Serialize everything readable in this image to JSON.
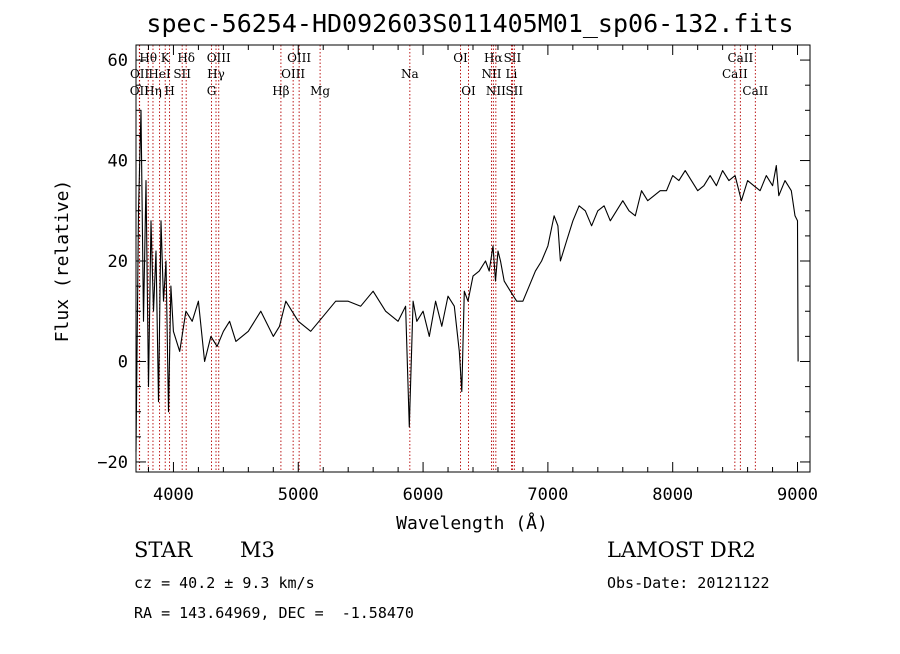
{
  "chart_data": {
    "type": "line",
    "title": "spec-56254-HD092603S011405M01_sp06-132.fits",
    "xlabel": "Wavelength (Å)",
    "ylabel": "Flux (relative)",
    "xlim": [
      3700,
      9100
    ],
    "ylim": [
      -22,
      63
    ],
    "x_ticks": [
      4000,
      5000,
      6000,
      7000,
      8000,
      9000
    ],
    "y_ticks": [
      -20,
      0,
      20,
      40,
      60
    ],
    "grid": false,
    "series": [
      {
        "x": [
          3700,
          3720,
          3740,
          3760,
          3780,
          3800,
          3820,
          3840,
          3860,
          3880,
          3900,
          3920,
          3940,
          3960,
          3980,
          4000,
          4050,
          4100,
          4150,
          4200,
          4250,
          4300,
          4350,
          4400,
          4450,
          4500,
          4600,
          4700,
          4800,
          4850,
          4900,
          5000,
          5100,
          5200,
          5300,
          5400,
          5500,
          5600,
          5700,
          5800,
          5860,
          5890,
          5920,
          5950,
          6000,
          6050,
          6100,
          6150,
          6200,
          6250,
          6290,
          6310,
          6330,
          6360,
          6400,
          6450,
          6500,
          6530,
          6560,
          6580,
          6600,
          6620,
          6650,
          6700,
          6750,
          6800,
          6850,
          6900,
          6950,
          7000,
          7050,
          7080,
          7100,
          7150,
          7200,
          7250,
          7300,
          7350,
          7400,
          7450,
          7500,
          7550,
          7600,
          7650,
          7700,
          7750,
          7800,
          7850,
          7900,
          7950,
          8000,
          8050,
          8100,
          8150,
          8200,
          8250,
          8300,
          8350,
          8400,
          8450,
          8500,
          8550,
          8600,
          8650,
          8700,
          8750,
          8800,
          8830,
          8850,
          8900,
          8950,
          8980,
          9000,
          9005
        ],
        "y": [
          -18,
          30,
          50,
          8,
          36,
          -5,
          28,
          10,
          22,
          -8,
          28,
          12,
          20,
          -10,
          15,
          6,
          2,
          10,
          8,
          12,
          0,
          5,
          3,
          6,
          8,
          4,
          6,
          10,
          5,
          7,
          12,
          8,
          6,
          9,
          12,
          12,
          11,
          14,
          10,
          8,
          11,
          -13,
          12,
          8,
          10,
          5,
          12,
          7,
          13,
          11,
          2,
          -6,
          14,
          12,
          17,
          18,
          20,
          18,
          23,
          16,
          22,
          20,
          16,
          14,
          12,
          12,
          15,
          18,
          20,
          23,
          29,
          27,
          20,
          24,
          28,
          31,
          30,
          27,
          30,
          31,
          28,
          30,
          32,
          30,
          29,
          34,
          32,
          33,
          34,
          34,
          37,
          36,
          38,
          36,
          34,
          35,
          37,
          35,
          38,
          36,
          37,
          32,
          36,
          35,
          34,
          37,
          35,
          39,
          33,
          36,
          34,
          29,
          28,
          0
        ]
      }
    ],
    "line_markers": [
      {
        "label": "OII",
        "x": 3727,
        "row": 3
      },
      {
        "label": "OII",
        "x": 3729,
        "row": 2
      },
      {
        "label": "Hθ",
        "x": 3798,
        "row": 1
      },
      {
        "label": "Hη",
        "x": 3836,
        "row": 3
      },
      {
        "label": "HeI",
        "x": 3889,
        "row": 2
      },
      {
        "label": "K",
        "x": 3934,
        "row": 1
      },
      {
        "label": "H",
        "x": 3969,
        "row": 3
      },
      {
        "label": "SII",
        "x": 4070,
        "row": 2
      },
      {
        "label": "Hδ",
        "x": 4102,
        "row": 1
      },
      {
        "label": "G",
        "x": 4305,
        "row": 3
      },
      {
        "label": "Hγ",
        "x": 4341,
        "row": 2
      },
      {
        "label": "OIII",
        "x": 4363,
        "row": 1
      },
      {
        "label": "Hβ",
        "x": 4861,
        "row": 3
      },
      {
        "label": "OIII",
        "x": 4959,
        "row": 2
      },
      {
        "label": "OIII",
        "x": 5007,
        "row": 1
      },
      {
        "label": "Mg",
        "x": 5175,
        "row": 3
      },
      {
        "label": "Na",
        "x": 5894,
        "row": 2
      },
      {
        "label": "OI",
        "x": 6300,
        "row": 1
      },
      {
        "label": "OI",
        "x": 6364,
        "row": 3
      },
      {
        "label": "NII",
        "x": 6548,
        "row": 2
      },
      {
        "label": "Hα",
        "x": 6563,
        "row": 1
      },
      {
        "label": "NII",
        "x": 6583,
        "row": 3
      },
      {
        "label": "Li",
        "x": 6708,
        "row": 2
      },
      {
        "label": "SII",
        "x": 6716,
        "row": 1
      },
      {
        "label": "SII",
        "x": 6731,
        "row": 3
      },
      {
        "label": "CaII",
        "x": 8498,
        "row": 2
      },
      {
        "label": "CaII",
        "x": 8542,
        "row": 1
      },
      {
        "label": "CaII",
        "x": 8662,
        "row": 3
      }
    ]
  },
  "info": {
    "object_class": "STAR",
    "subclass": "M3",
    "survey": "LAMOST DR2",
    "redshift": "cz = 40.2 ± 9.3 km/s",
    "obs_date": "Obs-Date: 20121122",
    "coords": "RA = 143.64969, DEC =  -1.58470"
  }
}
